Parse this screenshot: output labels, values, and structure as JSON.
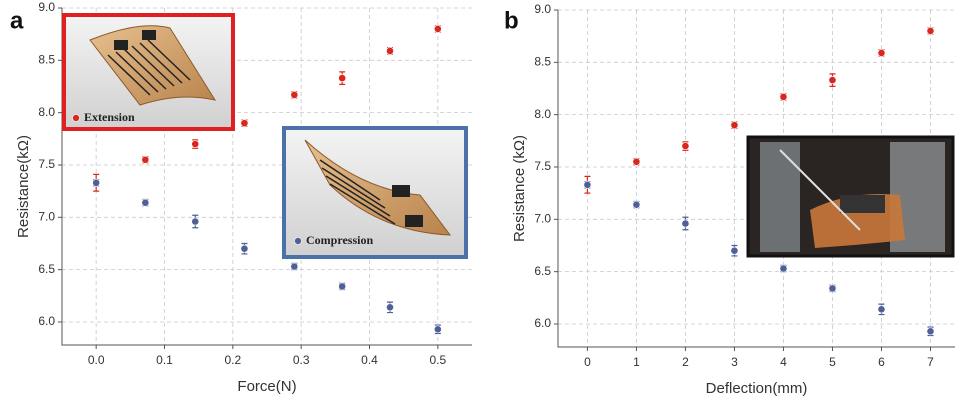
{
  "chart_data": [
    {
      "type": "scatter",
      "label": "a",
      "x_label": "Force(N)",
      "y_label": "Resistance(kΩ)",
      "x": [
        0,
        0.072,
        0.145,
        0.217,
        0.29,
        0.36,
        0.43,
        0.5
      ],
      "series": [
        {
          "name": "Extension",
          "color": "#d8281e",
          "values": [
            7.33,
            7.55,
            7.7,
            7.9,
            8.17,
            8.33,
            8.59,
            8.8
          ],
          "errors": [
            0.08,
            0.03,
            0.04,
            0.03,
            0.03,
            0.06,
            0.03,
            0.03
          ]
        },
        {
          "name": "Compression",
          "color": "#4f5f98",
          "values": [
            7.33,
            7.14,
            6.96,
            6.7,
            6.53,
            6.34,
            6.14,
            5.93
          ],
          "errors": [
            0.03,
            0.03,
            0.06,
            0.05,
            0.03,
            0.03,
            0.05,
            0.04
          ]
        }
      ],
      "xlim": [
        -0.05,
        0.55
      ],
      "xticks": [
        {
          "value": 0,
          "label": "0.0"
        },
        0.1,
        0.2,
        0.3,
        0.4,
        0.5
      ],
      "ylim": [
        5.78,
        9.0
      ],
      "yticks": [
        {
          "value": 6,
          "label": "6.0"
        },
        6.5,
        {
          "value": 7,
          "label": "7.0"
        },
        7.5,
        {
          "value": 8,
          "label": "8.0"
        },
        8.5,
        {
          "value": 9,
          "label": "9.0"
        }
      ],
      "grid": true
    },
    {
      "type": "scatter",
      "label": "b",
      "x_label": "Deflection(mm)",
      "y_label": "Resistance (kΩ)",
      "x": [
        0,
        1,
        2,
        3,
        4,
        5,
        6,
        7
      ],
      "series": [
        {
          "color": "#d8281e",
          "values": [
            7.33,
            7.55,
            7.7,
            7.9,
            8.17,
            8.33,
            8.59,
            8.8
          ],
          "errors": [
            0.08,
            0.03,
            0.04,
            0.03,
            0.03,
            0.06,
            0.03,
            0.03
          ]
        },
        {
          "color": "#4f5f98",
          "values": [
            7.33,
            7.14,
            6.96,
            6.7,
            6.53,
            6.34,
            6.14,
            5.93
          ],
          "errors": [
            0.03,
            0.03,
            0.06,
            0.05,
            0.03,
            0.03,
            0.05,
            0.04
          ]
        }
      ],
      "xlim": [
        -0.6,
        7.5
      ],
      "xticks": [
        0,
        1,
        2,
        3,
        4,
        5,
        6,
        7
      ],
      "ylim": [
        5.78,
        9.0
      ],
      "yticks": [
        {
          "value": 6,
          "label": "6.0"
        },
        6.5,
        {
          "value": 7,
          "label": "7.0"
        },
        7.5,
        {
          "value": 8,
          "label": "8.0"
        },
        8.5,
        {
          "value": 9,
          "label": "9.0"
        }
      ],
      "grid": true
    }
  ]
}
